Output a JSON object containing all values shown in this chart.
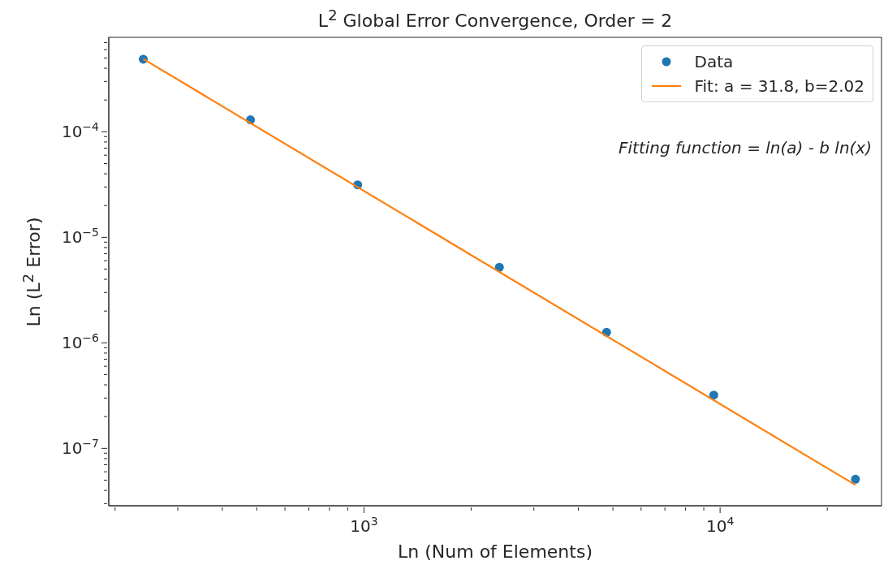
{
  "chart_data": {
    "type": "scatter",
    "title": "L$^{2}$ Global Error Convergence, Order = 2",
    "xlabel": "Ln (Num of Elements)",
    "ylabel": "Ln (L$^{2}$ Error)",
    "annotations": [
      "Fitting function = ln(a) - b ln(x)"
    ],
    "log": "xy",
    "grid": false,
    "legend": "top right",
    "xlim": [
      192,
      28400
    ],
    "xticks": [
      {
        "value": 200,
        "label": null
      },
      {
        "value": 300,
        "label": null
      },
      {
        "value": 400,
        "label": null
      },
      {
        "value": 500,
        "label": null
      },
      {
        "value": 600,
        "label": null
      },
      {
        "value": 700,
        "label": null
      },
      {
        "value": 800,
        "label": null
      },
      {
        "value": 900,
        "label": null
      },
      {
        "value": 1000,
        "label": "10$^{3}$"
      },
      {
        "value": 2000,
        "label": null
      },
      {
        "value": 3000,
        "label": null
      },
      {
        "value": 4000,
        "label": null
      },
      {
        "value": 5000,
        "label": null
      },
      {
        "value": 6000,
        "label": null
      },
      {
        "value": 7000,
        "label": null
      },
      {
        "value": 8000,
        "label": null
      },
      {
        "value": 9000,
        "label": null
      },
      {
        "value": 10000,
        "label": "10$^{4}$"
      },
      {
        "value": 20000,
        "label": null
      }
    ],
    "ylim": [
      2.86e-08,
      0.000785
    ],
    "yticks": [
      {
        "value": 3e-08,
        "label": null
      },
      {
        "value": 4e-08,
        "label": null
      },
      {
        "value": 5e-08,
        "label": null
      },
      {
        "value": 6e-08,
        "label": null
      },
      {
        "value": 7e-08,
        "label": null
      },
      {
        "value": 8e-08,
        "label": null
      },
      {
        "value": 9e-08,
        "label": null
      },
      {
        "value": 1e-07,
        "label": "10$^{−7}$"
      },
      {
        "value": 2e-07,
        "label": null
      },
      {
        "value": 3e-07,
        "label": null
      },
      {
        "value": 4e-07,
        "label": null
      },
      {
        "value": 5e-07,
        "label": null
      },
      {
        "value": 6e-07,
        "label": null
      },
      {
        "value": 7e-07,
        "label": null
      },
      {
        "value": 8e-07,
        "label": null
      },
      {
        "value": 9e-07,
        "label": null
      },
      {
        "value": 1e-06,
        "label": "10$^{−6}$"
      },
      {
        "value": 2e-06,
        "label": null
      },
      {
        "value": 3e-06,
        "label": null
      },
      {
        "value": 4e-06,
        "label": null
      },
      {
        "value": 5e-06,
        "label": null
      },
      {
        "value": 6e-06,
        "label": null
      },
      {
        "value": 7e-06,
        "label": null
      },
      {
        "value": 8e-06,
        "label": null
      },
      {
        "value": 9e-06,
        "label": null
      },
      {
        "value": 1e-05,
        "label": "10$^{−5}$"
      },
      {
        "value": 2e-05,
        "label": null
      },
      {
        "value": 3e-05,
        "label": null
      },
      {
        "value": 4e-05,
        "label": null
      },
      {
        "value": 5e-05,
        "label": null
      },
      {
        "value": 6e-05,
        "label": null
      },
      {
        "value": 7e-05,
        "label": null
      },
      {
        "value": 8e-05,
        "label": null
      },
      {
        "value": 9e-05,
        "label": null
      },
      {
        "value": 0.0001,
        "label": "10$^{−4}$"
      },
      {
        "value": 0.0002,
        "label": null
      },
      {
        "value": 0.0003,
        "label": null
      },
      {
        "value": 0.0004,
        "label": null
      },
      {
        "value": 0.0005,
        "label": null
      },
      {
        "value": 0.0006,
        "label": null
      },
      {
        "value": 0.0007,
        "label": null
      }
    ],
    "series": [
      {
        "name": "Data",
        "marker": "circle",
        "color": "#1f77b4",
        "x": [
          240,
          480,
          960,
          2400,
          4800,
          9600,
          24000
        ],
        "values": [
          0.000487,
          0.00013,
          3.14e-05,
          5.2e-06,
          1.26e-06,
          3.2e-07,
          5.1e-08
        ]
      },
      {
        "name": "Fit: a = 31.8, b=2.02",
        "type": "line",
        "marker": "none",
        "line_style": "solid",
        "color": "#ff7f0e",
        "x": [
          240,
          24000
        ],
        "values": [
          0.00049,
          4.5e-08
        ]
      }
    ]
  }
}
